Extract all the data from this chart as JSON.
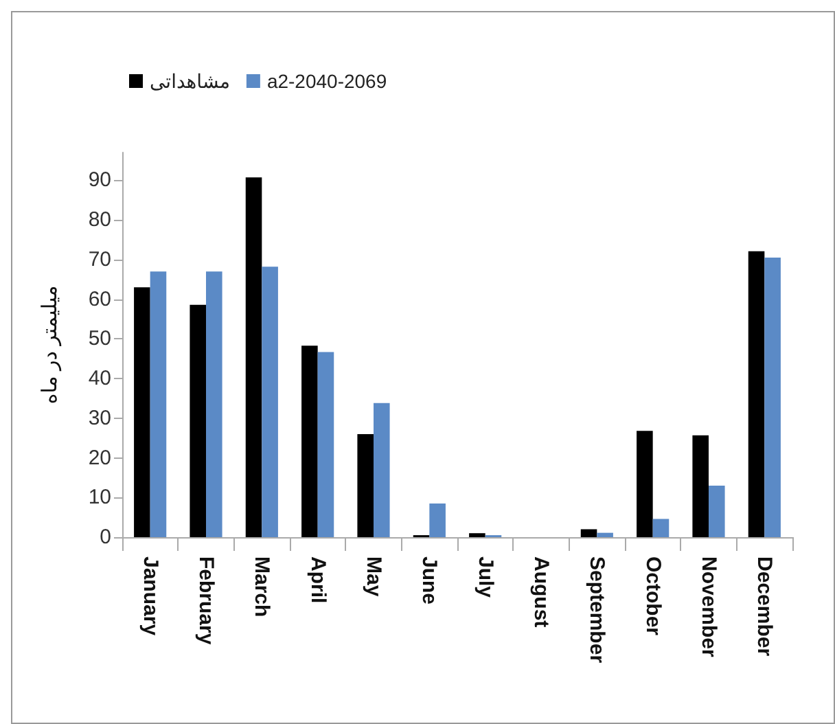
{
  "chart_data": {
    "type": "bar",
    "ylabel": "میلیمتر در ماه",
    "categories": [
      "January",
      "February",
      "March",
      "April",
      "May",
      "June",
      "July",
      "August",
      "September",
      "October",
      "November",
      "December"
    ],
    "series": [
      {
        "name": "مشاهداتی",
        "color": "#000000",
        "values": [
          63,
          58.6,
          90.7,
          48.3,
          26,
          0.5,
          1,
          0,
          2,
          26.8,
          25.7,
          72.1
        ]
      },
      {
        "name": "a2-2040-2069",
        "color": "#5b8ac6",
        "values": [
          67,
          67,
          68.2,
          46.7,
          33.8,
          8.5,
          0.5,
          0,
          1.1,
          4.6,
          13,
          70.5
        ]
      }
    ],
    "ylim": [
      0,
      97
    ],
    "yticks": [
      0,
      10,
      20,
      30,
      40,
      50,
      60,
      70,
      80,
      90
    ],
    "grid": false,
    "legend": "top left"
  }
}
